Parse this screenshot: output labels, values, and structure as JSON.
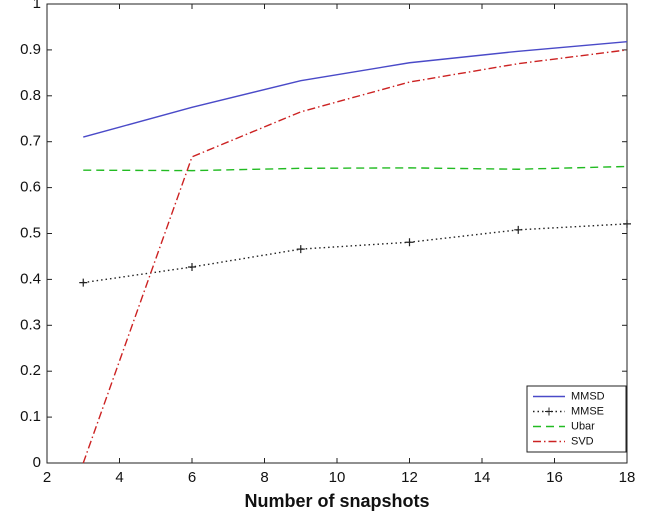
{
  "chart_data": {
    "type": "line",
    "x": [
      3,
      6,
      9,
      12,
      15,
      18
    ],
    "xlabel": "Number of snapshots",
    "xlim": [
      2,
      18
    ],
    "xticks": [
      2,
      4,
      6,
      8,
      10,
      12,
      14,
      16,
      18
    ],
    "ylim": [
      0,
      1
    ],
    "yticks": [
      0,
      0.1,
      0.2,
      0.3,
      0.4,
      0.5,
      0.6,
      0.7,
      0.8,
      0.9,
      1
    ],
    "legend": "lower-right",
    "series": [
      {
        "name": "MMSD",
        "color": "#4a4ac8",
        "dash": "solid",
        "values": [
          0.71,
          0.775,
          0.833,
          0.872,
          0.897,
          0.918
        ]
      },
      {
        "name": "MMSE",
        "color": "#222222",
        "dash": "dotted",
        "marker": "+",
        "values": [
          0.393,
          0.427,
          0.466,
          0.481,
          0.508,
          0.521
        ]
      },
      {
        "name": "Ubar",
        "color": "#22bb22",
        "dash": "dashed",
        "values": [
          0.638,
          0.637,
          0.642,
          0.643,
          0.64,
          0.646
        ]
      },
      {
        "name": "SVD",
        "color": "#cc2222",
        "dash": "dashdot",
        "values": [
          0.0,
          0.667,
          0.765,
          0.83,
          0.87,
          0.9
        ]
      }
    ]
  }
}
